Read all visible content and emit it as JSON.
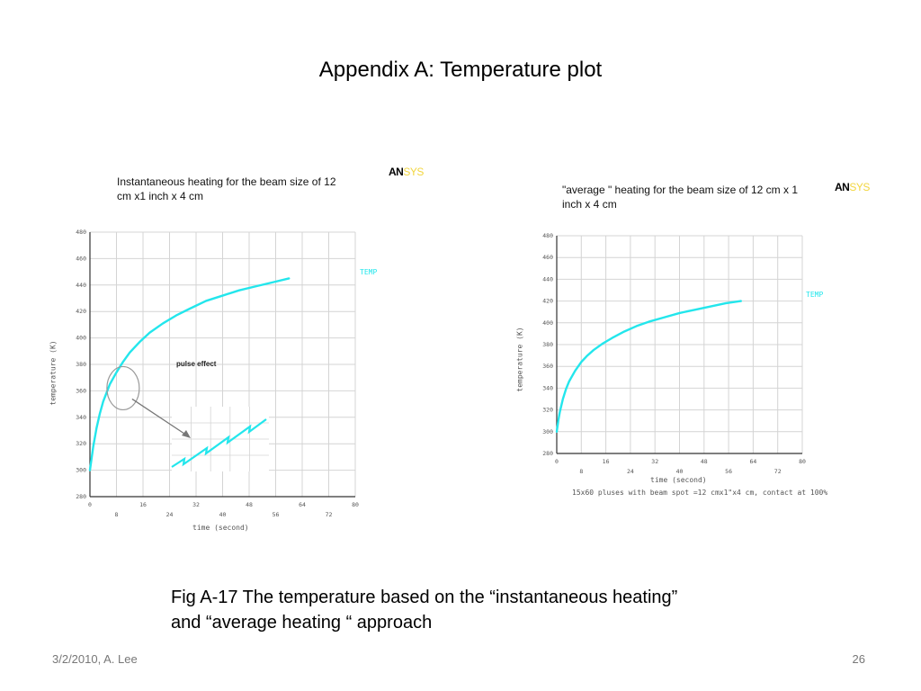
{
  "slide": {
    "title": "Appendix A: Temperature plot",
    "caption_line1": "Fig A-17 The temperature based on the “instantaneous heating”",
    "caption_line2": "and “average heating “ approach",
    "footer_left": "3/2/2010, A. Lee",
    "page_number": "26"
  },
  "logo": {
    "an": "AN",
    "sys": "SYS"
  },
  "colors": {
    "curve": "#23e6ec",
    "grid": "#d4d4d4",
    "axis": "#333333",
    "tick_text": "#555555"
  },
  "chart_data": [
    {
      "type": "line",
      "title_line1": "Instantaneous heating for the beam size of 12",
      "title_line2": "cm x1 inch x 4 cm",
      "xlabel": "time (second)",
      "ylabel": "temperature (K)",
      "legend": "TEMP",
      "annotation": "pulse effect",
      "xlim": [
        0,
        80
      ],
      "ylim": [
        280,
        480
      ],
      "x_ticks": [
        0,
        8,
        16,
        24,
        32,
        40,
        48,
        56,
        64,
        72,
        80
      ],
      "y_ticks": [
        280,
        300,
        320,
        340,
        360,
        380,
        400,
        420,
        440,
        460,
        480
      ],
      "grid": true,
      "series": [
        {
          "x": [
            0,
            1,
            2,
            3,
            4,
            6,
            8,
            10,
            12,
            15,
            18,
            22,
            26,
            30,
            35,
            40,
            45,
            50,
            55,
            60
          ],
          "y": [
            300,
            318,
            332,
            343,
            352,
            365,
            374,
            382,
            389,
            397,
            404,
            411,
            417,
            422,
            428,
            432,
            436,
            439,
            442,
            445
          ]
        }
      ]
    },
    {
      "type": "line",
      "title_line1": "\"average \" heating for the beam size of 12 cm x 1",
      "title_line2": "inch x 4 cm",
      "xlabel": "time (second)",
      "ylabel": "temperature (K)",
      "legend": "TEMP",
      "note": "15x60 pluses with beam spot =12 cmx1\"x4 cm, contact at 100%",
      "xlim": [
        0,
        80
      ],
      "ylim": [
        280,
        480
      ],
      "x_ticks": [
        0,
        8,
        16,
        24,
        32,
        40,
        48,
        56,
        64,
        72,
        80
      ],
      "y_ticks": [
        280,
        300,
        320,
        340,
        360,
        380,
        400,
        420,
        440,
        460,
        480
      ],
      "grid": true,
      "series": [
        {
          "x": [
            0,
            0.5,
            1,
            2,
            3,
            4,
            6,
            8,
            10,
            12,
            15,
            18,
            22,
            26,
            30,
            35,
            40,
            45,
            50,
            55,
            60
          ],
          "y": [
            300,
            310,
            318,
            330,
            339,
            346,
            356,
            364,
            370,
            375,
            381,
            386,
            392,
            397,
            401,
            405,
            409,
            412,
            415,
            418,
            420
          ]
        }
      ]
    }
  ]
}
